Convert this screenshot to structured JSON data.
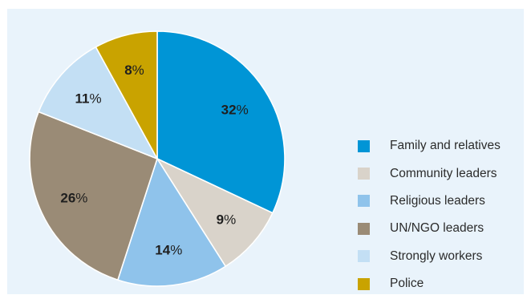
{
  "chart_data": {
    "type": "pie",
    "title": "",
    "slices": [
      {
        "label": "Family and relatives",
        "value": 32,
        "display": "32%",
        "color": "#0095d6"
      },
      {
        "label": "Community leaders",
        "value": 9,
        "display": "9%",
        "color": "#d9d3ca"
      },
      {
        "label": "Religious leaders",
        "value": 14,
        "display": "14%",
        "color": "#8fc3eb"
      },
      {
        "label": "UN/NGO leaders",
        "value": 26,
        "display": "26%",
        "color": "#9a8b76"
      },
      {
        "label": "Strongly workers",
        "value": 11,
        "display": "11%",
        "color": "#c3dff4"
      },
      {
        "label": "Police",
        "value": 8,
        "display": "8%",
        "color": "#c9a300"
      }
    ],
    "start_angle_deg": 0,
    "direction": "clockwise",
    "legend_position": "right",
    "background_color": "#e9f3fb"
  }
}
